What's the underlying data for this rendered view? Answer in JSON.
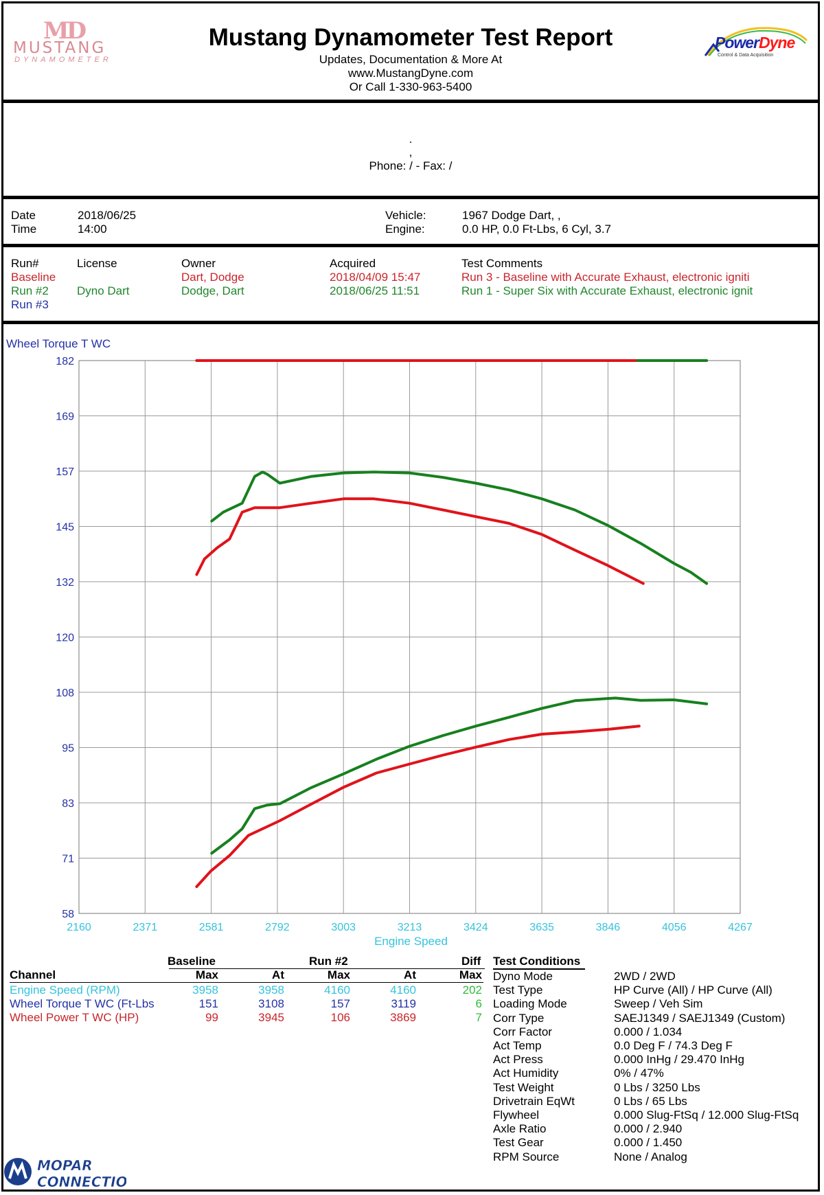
{
  "header": {
    "title": "Mustang Dynamometer Test Report",
    "line1": "Updates, Documentation & More At",
    "line2": "www.MustangDyne.com",
    "line3": "Or Call 1-330-963-5400",
    "left_logo_mark": "MD",
    "left_logo_word": "MUSTANG",
    "left_logo_sub": "DYNAMOMETER",
    "right_logo_a": "Power",
    "right_logo_b": "Dyne",
    "right_logo_sub": "Control & Data Acquisition"
  },
  "customer": {
    "line1": ".",
    "line2": ",",
    "phone": "Phone:  /  - Fax:  /"
  },
  "info": {
    "date_label": "Date",
    "date": "2018/06/25",
    "time_label": "Time",
    "time": "14:00",
    "vehicle_label": "Vehicle:",
    "vehicle": "1967 Dodge Dart, ,",
    "engine_label": "Engine:",
    "engine": "0.0 HP, 0.0 Ft-Lbs, 6 Cyl, 3.7"
  },
  "runs": {
    "headers": [
      "Run#",
      "License",
      "Owner",
      "Acquired",
      "Test Comments"
    ],
    "rows": [
      {
        "run": "Baseline",
        "license": "",
        "owner": "Dart, Dodge",
        "acquired": "2018/04/09 15:47",
        "comments": "Run 3 - Baseline with Accurate Exhaust, electronic igniti"
      },
      {
        "run": "Run #2",
        "license": "Dyno Dart",
        "owner": "Dodge, Dart",
        "acquired": "2018/06/25 11:51",
        "comments": "Run 1 - Super Six with Accurate Exhaust, electronic ignit"
      },
      {
        "run": "Run #3",
        "license": "",
        "owner": "",
        "acquired": "",
        "comments": ""
      }
    ]
  },
  "chart_data": {
    "type": "line",
    "title": "",
    "ylabel": "Wheel Torque T WC",
    "xlabel": "Engine Speed",
    "xlim": [
      2160,
      4267
    ],
    "ylim": [
      58,
      182
    ],
    "x_ticks": [
      "2160",
      "2371",
      "2581",
      "2792",
      "3003",
      "3213",
      "3424",
      "3635",
      "3846",
      "4056",
      "4267"
    ],
    "y_ticks": [
      "58",
      "71",
      "83",
      "95",
      "108",
      "120",
      "132",
      "145",
      "157",
      "169",
      "182"
    ],
    "grid": true,
    "series": [
      {
        "name": "Baseline",
        "color": "#e0131b",
        "metric": "Wheel Torque T WC",
        "points": [
          [
            2535,
            134
          ],
          [
            2560,
            137.5
          ],
          [
            2600,
            140
          ],
          [
            2640,
            142
          ],
          [
            2680,
            148
          ],
          [
            2720,
            149
          ],
          [
            2800,
            149
          ],
          [
            2900,
            150
          ],
          [
            3003,
            151
          ],
          [
            3100,
            151
          ],
          [
            3213,
            150
          ],
          [
            3320,
            148.5
          ],
          [
            3424,
            147
          ],
          [
            3530,
            145.5
          ],
          [
            3635,
            143
          ],
          [
            3740,
            139.5
          ],
          [
            3846,
            136
          ],
          [
            3958,
            132
          ]
        ]
      },
      {
        "name": "Run #2",
        "color": "#17801f",
        "metric": "Wheel Torque T WC",
        "points": [
          [
            2583,
            146
          ],
          [
            2620,
            148
          ],
          [
            2680,
            150
          ],
          [
            2720,
            156
          ],
          [
            2745,
            157
          ],
          [
            2760,
            156.5
          ],
          [
            2800,
            154.5
          ],
          [
            2900,
            156
          ],
          [
            3003,
            156.8
          ],
          [
            3100,
            157
          ],
          [
            3213,
            156.8
          ],
          [
            3320,
            155.8
          ],
          [
            3424,
            154.5
          ],
          [
            3530,
            153
          ],
          [
            3635,
            151
          ],
          [
            3740,
            148.5
          ],
          [
            3846,
            145
          ],
          [
            3950,
            141
          ],
          [
            4056,
            136.5
          ],
          [
            4110,
            134.5
          ],
          [
            4160,
            132
          ]
        ]
      },
      {
        "name": "Baseline",
        "color": "#e0131b",
        "metric": "Wheel Power T WC",
        "points": [
          [
            2535,
            64
          ],
          [
            2580,
            67.5
          ],
          [
            2640,
            71
          ],
          [
            2700,
            75.5
          ],
          [
            2800,
            78.8
          ],
          [
            2900,
            82.5
          ],
          [
            3003,
            86.3
          ],
          [
            3108,
            89.5
          ],
          [
            3213,
            91.5
          ],
          [
            3320,
            93.5
          ],
          [
            3424,
            95.3
          ],
          [
            3530,
            97
          ],
          [
            3635,
            98.2
          ],
          [
            3740,
            98.7
          ],
          [
            3846,
            99.3
          ],
          [
            3945,
            100
          ]
        ]
      },
      {
        "name": "Run #2",
        "color": "#17801f",
        "metric": "Wheel Power T WC",
        "points": [
          [
            2583,
            71.5
          ],
          [
            2640,
            74.5
          ],
          [
            2680,
            77
          ],
          [
            2720,
            81.5
          ],
          [
            2760,
            82.3
          ],
          [
            2800,
            82.6
          ],
          [
            2900,
            86.2
          ],
          [
            3003,
            89.3
          ],
          [
            3108,
            92.6
          ],
          [
            3213,
            95.5
          ],
          [
            3320,
            97.9
          ],
          [
            3424,
            100
          ],
          [
            3530,
            102
          ],
          [
            3635,
            104
          ],
          [
            3740,
            105.7
          ],
          [
            3869,
            106.3
          ],
          [
            3950,
            105.8
          ],
          [
            4056,
            105.9
          ],
          [
            4160,
            105
          ]
        ]
      },
      {
        "name": "Baseline",
        "color": "#e0131b",
        "metric": "Engine Speed",
        "points": [
          [
            2535,
            182
          ],
          [
            3958,
            182
          ]
        ]
      },
      {
        "name": "Run #2",
        "color": "#17801f",
        "metric": "Engine Speed",
        "points": [
          [
            3940,
            182
          ],
          [
            4160,
            182
          ]
        ]
      }
    ]
  },
  "stats": {
    "group_headers": {
      "baseline": "Baseline",
      "run2": "Run #2",
      "diff": "Diff"
    },
    "col_headers": {
      "channel": "Channel",
      "max1": "Max",
      "at1": "At",
      "max2": "Max",
      "at2": "At",
      "dmax": "Max"
    },
    "rows": [
      {
        "channel": "Engine Speed (RPM)",
        "color": "#35c3dc",
        "max1": "3958",
        "at1": "3958",
        "max2": "4160",
        "at2": "4160",
        "diff": "202"
      },
      {
        "channel": "Wheel Torque T WC (Ft-Lbs",
        "color": "#2431a6",
        "max1": "151",
        "at1": "3108",
        "max2": "157",
        "at2": "3119",
        "diff": "6"
      },
      {
        "channel": "Wheel Power T WC (HP)",
        "color": "#c8262c",
        "max1": "99",
        "at1": "3945",
        "max2": "106",
        "at2": "3869",
        "diff": "7"
      }
    ]
  },
  "conditions": {
    "title": "Test Conditions",
    "items": [
      {
        "label": "Dyno Mode",
        "value": "2WD / 2WD"
      },
      {
        "label": "Test Type",
        "value": "HP Curve (All) / HP Curve (All)"
      },
      {
        "label": "Loading Mode",
        "value": "Sweep / Veh Sim"
      },
      {
        "label": "Corr Type",
        "value": "SAEJ1349 / SAEJ1349 (Custom)"
      },
      {
        "label": "Corr Factor",
        "value": "0.000 / 1.034"
      },
      {
        "label": "Act Temp",
        "value": "0.0 Deg F / 74.3 Deg F"
      },
      {
        "label": "Act Press",
        "value": "0.000 InHg / 29.470 InHg"
      },
      {
        "label": "Act Humidity",
        "value": "0% / 47%"
      },
      {
        "label": "Test Weight",
        "value": "0 Lbs / 3250 Lbs"
      },
      {
        "label": "Drivetrain EqWt",
        "value": "0 Lbs / 65 Lbs"
      },
      {
        "label": "Flywheel",
        "value": "0.000 Slug-FtSq / 12.000 Slug-FtSq"
      },
      {
        "label": "Axle Ratio",
        "value": "0.000 / 2.940"
      },
      {
        "label": "Test Gear",
        "value": "0.000 / 1.450"
      },
      {
        "label": "RPM Source",
        "value": "None / Analog"
      }
    ]
  },
  "watermark": {
    "line1": "MOPAR",
    "line2": "CONNECTION",
    "tiny": "MOPAR"
  }
}
